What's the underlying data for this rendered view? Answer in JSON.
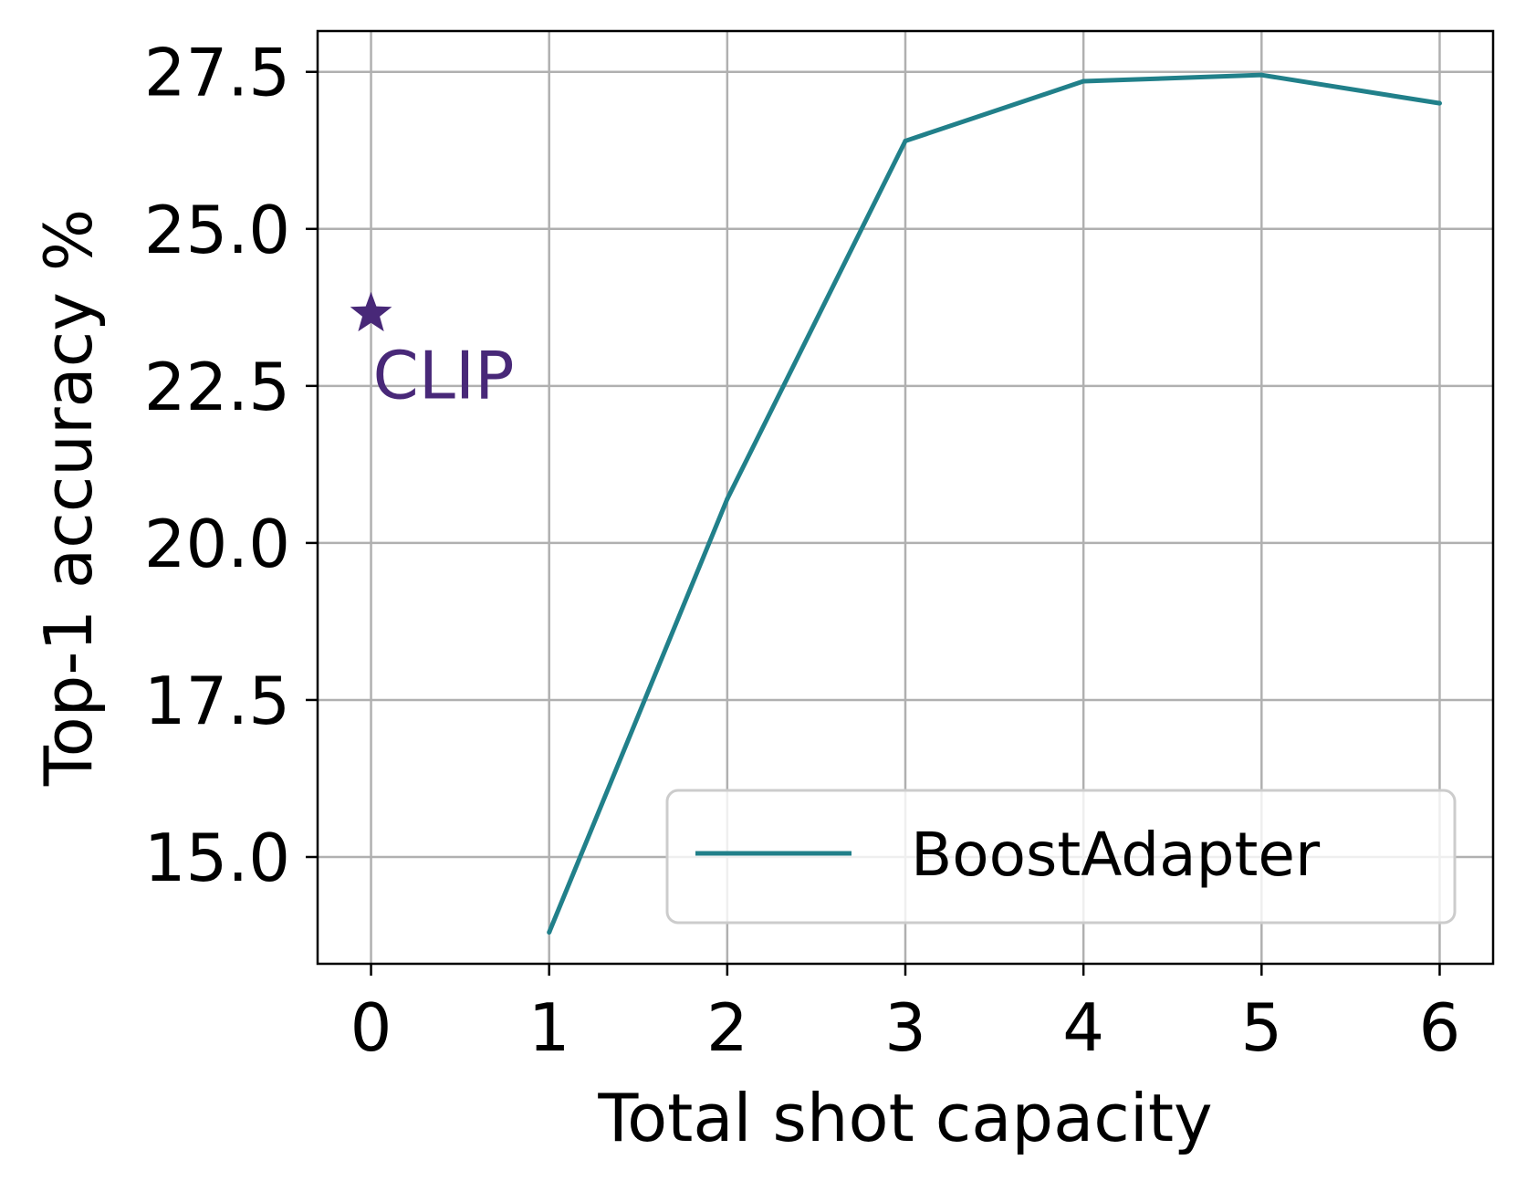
{
  "chart_data": {
    "type": "line",
    "xlabel": "Total shot capacity",
    "ylabel": "Top-1 accuracy %",
    "xlim": [
      -0.3,
      6.3
    ],
    "ylim": [
      13.3,
      28.15
    ],
    "xticks": [
      0,
      1,
      2,
      3,
      4,
      5,
      6
    ],
    "xtick_labels": [
      "0",
      "1",
      "2",
      "3",
      "4",
      "5",
      "6"
    ],
    "yticks": [
      15.0,
      17.5,
      20.0,
      22.5,
      25.0,
      27.5
    ],
    "ytick_labels": [
      "15.0",
      "17.5",
      "20.0",
      "22.5",
      "25.0",
      "27.5"
    ],
    "grid": true,
    "legend": {
      "placement": "lower-right"
    },
    "series": [
      {
        "name": "BoostAdapter",
        "color": "#21808a",
        "x": [
          1,
          2,
          3,
          4,
          5,
          6
        ],
        "y": [
          13.8,
          20.7,
          26.4,
          27.35,
          27.45,
          27.0
        ]
      }
    ],
    "markers": [
      {
        "label": "CLIP",
        "marker": "star",
        "color": "#482878",
        "x": 0,
        "y": 23.65
      }
    ]
  }
}
